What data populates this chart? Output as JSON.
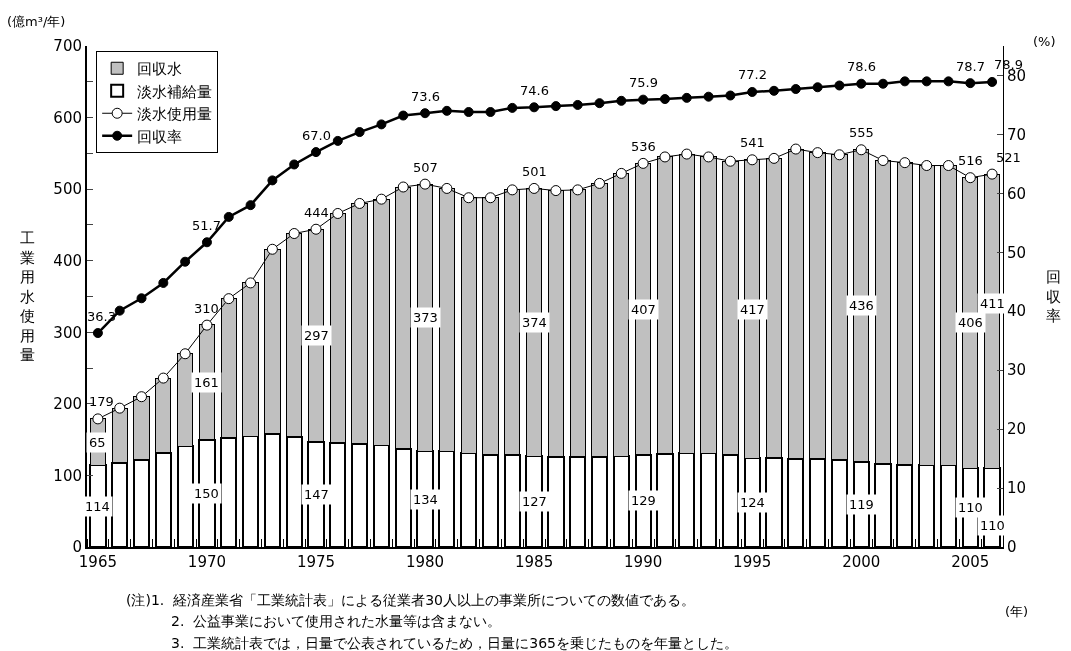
{
  "chart_data": {
    "type": "bar",
    "stacked": true,
    "ylabel": "工業用水使用量",
    "y2label": "回収率",
    "x": [
      1965,
      1966,
      1967,
      1968,
      1969,
      1970,
      1971,
      1972,
      1973,
      1974,
      1975,
      1976,
      1977,
      1978,
      1979,
      1980,
      1981,
      1982,
      1983,
      1984,
      1985,
      1986,
      1987,
      1988,
      1989,
      1990,
      1991,
      1992,
      1993,
      1994,
      1995,
      1996,
      1997,
      1998,
      1999,
      2000,
      2001,
      2002,
      2003,
      2004,
      2005,
      2006
    ],
    "series": [
      {
        "name": "淡水補給量",
        "type": "bar",
        "color": "#ffffff",
        "values": [
          114,
          118,
          122,
          132,
          141,
          150,
          153,
          155,
          158,
          154,
          147,
          146,
          144,
          142,
          137,
          134,
          134,
          131,
          129,
          129,
          127,
          126,
          126,
          126,
          127,
          129,
          130,
          131,
          131,
          129,
          124,
          125,
          123,
          123,
          122,
          119,
          116,
          115,
          114,
          114,
          110,
          110
        ],
        "value_labels": [
          "114",
          null,
          null,
          null,
          null,
          "150",
          null,
          null,
          null,
          null,
          "147",
          null,
          null,
          null,
          null,
          "134",
          null,
          null,
          null,
          null,
          "127",
          null,
          null,
          null,
          null,
          "129",
          null,
          null,
          null,
          null,
          "124",
          null,
          null,
          null,
          null,
          "119",
          null,
          null,
          null,
          null,
          "110",
          "110"
        ]
      },
      {
        "name": "回収水",
        "type": "bar",
        "color": "#c0c0c0",
        "values": [
          65,
          76,
          88,
          104,
          129,
          161,
          194,
          214,
          258,
          284,
          297,
          320,
          336,
          344,
          366,
          373,
          367,
          357,
          359,
          370,
          374,
          372,
          373,
          382,
          395,
          407,
          415,
          418,
          414,
          410,
          417,
          418,
          433,
          428,
          426,
          436,
          424,
          422,
          419,
          419,
          406,
          411
        ],
        "value_labels": [
          "65",
          null,
          null,
          null,
          null,
          "161",
          null,
          null,
          null,
          null,
          "297",
          null,
          null,
          null,
          null,
          "373",
          null,
          null,
          null,
          null,
          "374",
          null,
          null,
          null,
          null,
          "407",
          null,
          null,
          null,
          null,
          "417",
          null,
          null,
          null,
          null,
          "436",
          null,
          null,
          null,
          null,
          "406",
          "411"
        ]
      },
      {
        "name": "淡水使用量",
        "type": "line",
        "color": "#ffffff",
        "values": [
          179,
          194,
          210,
          236,
          270,
          310,
          347,
          369,
          416,
          438,
          444,
          466,
          480,
          486,
          503,
          507,
          501,
          488,
          488,
          499,
          501,
          498,
          499,
          508,
          522,
          536,
          545,
          549,
          545,
          539,
          541,
          543,
          556,
          551,
          548,
          555,
          540,
          537,
          533,
          533,
          516,
          521
        ],
        "value_labels": [
          "179",
          null,
          null,
          null,
          null,
          "310",
          null,
          null,
          null,
          null,
          "444",
          null,
          null,
          null,
          null,
          "507",
          null,
          null,
          null,
          null,
          "501",
          null,
          null,
          null,
          null,
          "536",
          null,
          null,
          null,
          null,
          "541",
          null,
          null,
          null,
          null,
          "555",
          null,
          null,
          null,
          null,
          "516",
          "521"
        ]
      },
      {
        "name": "回収率",
        "type": "line",
        "axis": "y2",
        "color": "#000000",
        "values": [
          36.3,
          40.1,
          42.2,
          44.8,
          48.4,
          51.7,
          56.0,
          58.0,
          62.2,
          64.9,
          67.0,
          68.9,
          70.4,
          71.7,
          73.2,
          73.6,
          74.0,
          73.8,
          73.8,
          74.5,
          74.6,
          74.8,
          75.0,
          75.3,
          75.7,
          75.9,
          76.0,
          76.2,
          76.4,
          76.6,
          77.2,
          77.4,
          77.7,
          78.0,
          78.3,
          78.6,
          78.6,
          79.0,
          79.0,
          79.0,
          78.7,
          78.9
        ],
        "value_labels": [
          "36.3",
          null,
          null,
          null,
          null,
          "51.7",
          null,
          null,
          null,
          null,
          "67.0",
          null,
          null,
          null,
          null,
          "73.6",
          null,
          null,
          null,
          null,
          "74.6",
          null,
          null,
          null,
          null,
          "75.9",
          null,
          null,
          null,
          null,
          "77.2",
          null,
          null,
          null,
          null,
          "78.6",
          null,
          null,
          null,
          null,
          "78.7",
          "78.9"
        ]
      }
    ],
    "xlim": [
      1964.5,
      2006.5
    ],
    "xticks": [
      1965,
      1970,
      1975,
      1980,
      1985,
      1990,
      1995,
      2000,
      2005
    ],
    "ylim": [
      0,
      700
    ],
    "yticks": [
      0,
      100,
      200,
      300,
      400,
      500,
      600,
      700
    ],
    "y2lim": [
      0,
      85
    ],
    "y2ticks": [
      0,
      10,
      20,
      30,
      40,
      50,
      60,
      70,
      80
    ],
    "grid": false,
    "legend": "top left",
    "marker": "circle",
    "annotations": [
      "(億m³/年)",
      "(%)",
      "(年)",
      "(注)1.  経済産業省「工業統計表」による従業者30人以上の事業所についての数値である。",
      "2.  公益事業において使用された水量等は含まない。",
      "3.  工業統計表では，日量で公表されているため，日量に365を乗じたものを年量とした。"
    ]
  }
}
